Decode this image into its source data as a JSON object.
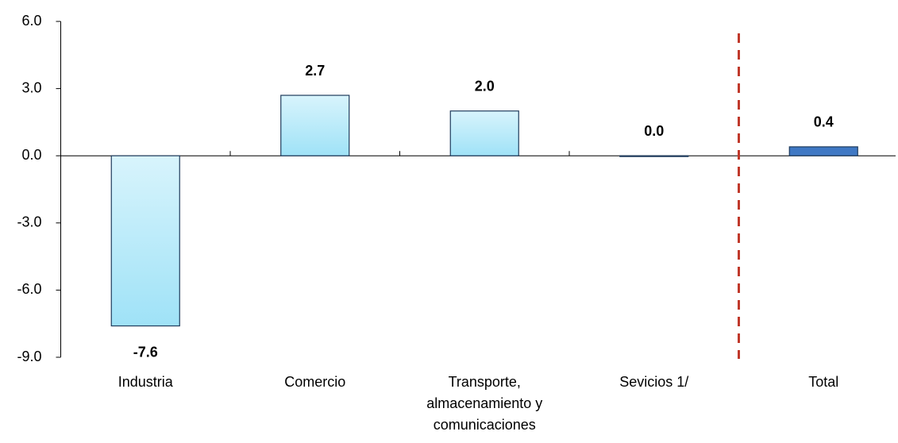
{
  "chart_data": {
    "type": "bar",
    "categories": [
      "Industria",
      "Comercio",
      "Transporte, almacenamiento y comunicaciones",
      "Sevicios 1/",
      "Total"
    ],
    "values": [
      -7.6,
      2.7,
      2.0,
      0.0,
      0.4
    ],
    "value_labels": [
      "-7.6",
      "2.7",
      "2.0",
      "0.0",
      "0.4"
    ],
    "colors": [
      "#b8ebfa",
      "#b8ebfa",
      "#b8ebfa",
      "#b8ebfa",
      "#3f78c4"
    ],
    "ylim": [
      -9,
      6
    ],
    "yticks": [
      {
        "value": -9,
        "label": "-9.0"
      },
      {
        "value": -6,
        "label": "-6.0"
      },
      {
        "value": -3,
        "label": "-3.0"
      },
      {
        "value": 0,
        "label": "0.0"
      },
      {
        "value": 3,
        "label": "3.0"
      },
      {
        "value": 6,
        "label": "6.0"
      }
    ]
  }
}
